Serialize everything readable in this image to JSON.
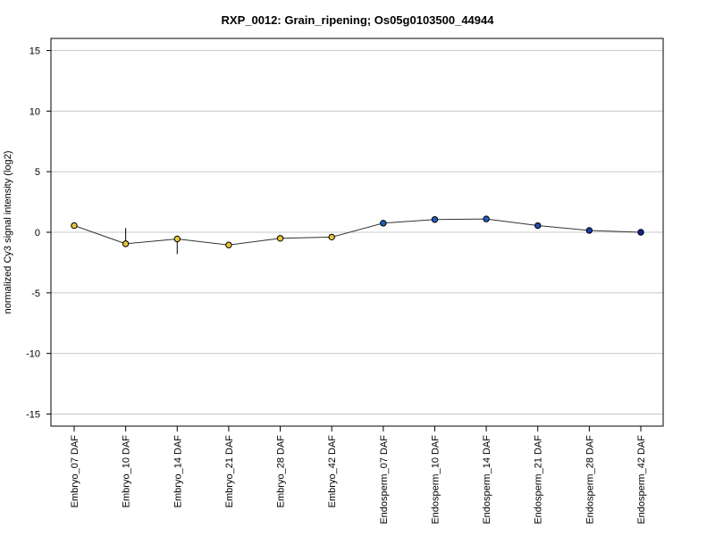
{
  "chart_data": {
    "type": "line",
    "title": "RXP_0012: Grain_ripening; Os05g0103500_44944",
    "xlabel": "",
    "ylabel": "normalized Cy3 signal intensity (log2)",
    "ylim": [
      -16,
      16
    ],
    "yticks": [
      15,
      10,
      5,
      0,
      -5,
      -10,
      -15
    ],
    "grid": true,
    "categories": [
      "Embryo_07 DAF",
      "Embryo_10 DAF",
      "Embryo_14 DAF",
      "Embryo_21 DAF",
      "Embryo_28 DAF",
      "Embryo_42 DAF",
      "Endosperm_07 DAF",
      "Endosperm_10 DAF",
      "Endosperm_14 DAF",
      "Endosperm_21 DAF",
      "Endosperm_28 DAF",
      "Endosperm_42 DAF"
    ],
    "series": [
      {
        "values": [
          0.55,
          -0.95,
          -0.55,
          -1.05,
          -0.5,
          -0.4,
          0.75,
          1.05,
          1.1,
          0.55,
          0.15,
          0.0
        ],
        "error_low": [
          0.55,
          -0.95,
          -1.8,
          -1.05,
          -0.5,
          -0.4,
          0.75,
          1.05,
          1.1,
          0.55,
          0.15,
          0.0
        ],
        "error_high": [
          0.55,
          0.35,
          -0.55,
          -1.05,
          -0.5,
          -0.4,
          0.75,
          1.05,
          1.1,
          0.55,
          0.3,
          0.0
        ],
        "colors": [
          "#e8c53a",
          "#e8c53a",
          "#e8c53a",
          "#e8c53a",
          "#e8c53a",
          "#e8c53a",
          "#1f5fbf",
          "#1f5fbf",
          "#1f5fbf",
          "#1f4db0",
          "#1a3aa8",
          "#14239a"
        ]
      }
    ]
  }
}
